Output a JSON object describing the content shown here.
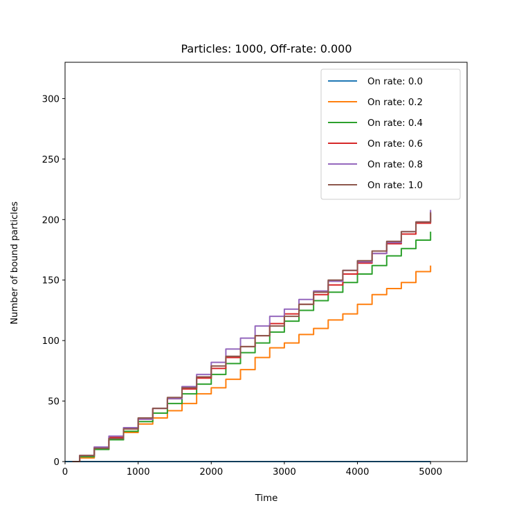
{
  "chart_data": {
    "type": "line",
    "title": "Particles: 1000, Off-rate: 0.000",
    "xlabel": "Time",
    "ylabel": "Number of bound particles",
    "xlim": [
      0,
      5500
    ],
    "ylim": [
      0,
      330
    ],
    "xticks": [
      0,
      1000,
      2000,
      3000,
      4000,
      5000
    ],
    "yticks": [
      0,
      50,
      100,
      150,
      200,
      250,
      300
    ],
    "grid": false,
    "legend_position": "top-right",
    "series": [
      {
        "name": "On rate: 0.0",
        "color": "#1f77b4",
        "x": [
          0,
          5000
        ],
        "y": [
          0,
          0
        ]
      },
      {
        "name": "On rate: 0.2",
        "color": "#ff7f0e",
        "x": [
          100,
          200,
          400,
          600,
          800,
          1000,
          1200,
          1400,
          1600,
          1800,
          2000,
          2200,
          2400,
          2600,
          2800,
          3000,
          3200,
          3400,
          3600,
          3800,
          4000,
          4200,
          4400,
          4600,
          4800,
          5000
        ],
        "y": [
          0,
          3,
          10,
          18,
          24,
          31,
          36,
          42,
          48,
          56,
          61,
          68,
          76,
          86,
          94,
          98,
          105,
          110,
          117,
          122,
          130,
          138,
          143,
          148,
          157,
          162
        ]
      },
      {
        "name": "On rate: 0.4",
        "color": "#2ca02c",
        "x": [
          100,
          200,
          400,
          600,
          800,
          1000,
          1200,
          1400,
          1600,
          1800,
          2000,
          2200,
          2400,
          2600,
          2800,
          3000,
          3200,
          3400,
          3600,
          3800,
          4000,
          4200,
          4400,
          4600,
          4800,
          5000
        ],
        "y": [
          0,
          4,
          10,
          18,
          25,
          33,
          40,
          48,
          56,
          64,
          72,
          81,
          90,
          98,
          107,
          116,
          125,
          133,
          140,
          148,
          155,
          162,
          170,
          176,
          183,
          190
        ]
      },
      {
        "name": "On rate: 0.6",
        "color": "#d62728",
        "x": [
          100,
          200,
          400,
          600,
          800,
          1000,
          1200,
          1400,
          1600,
          1800,
          2000,
          2200,
          2400,
          2600,
          2800,
          3000,
          3200,
          3400,
          3600,
          3800,
          4000,
          4200,
          4400,
          4600,
          4800,
          5000
        ],
        "y": [
          0,
          5,
          12,
          20,
          27,
          35,
          44,
          52,
          60,
          69,
          77,
          86,
          95,
          104,
          114,
          122,
          130,
          138,
          146,
          155,
          164,
          172,
          180,
          188,
          197,
          205
        ]
      },
      {
        "name": "On rate: 0.8",
        "color": "#9467bd",
        "x": [
          100,
          200,
          400,
          600,
          800,
          1000,
          1200,
          1400,
          1600,
          1800,
          2000,
          2200,
          2400,
          2600,
          2800,
          3000,
          3200,
          3400,
          3600,
          3800,
          4000,
          4200,
          4400,
          4600,
          4800,
          5000
        ],
        "y": [
          0,
          5,
          12,
          21,
          28,
          35,
          44,
          52,
          62,
          72,
          82,
          93,
          102,
          112,
          120,
          126,
          134,
          141,
          149,
          158,
          165,
          172,
          181,
          190,
          198,
          208
        ]
      },
      {
        "name": "On rate: 1.0",
        "color": "#8c564b",
        "x": [
          100,
          200,
          400,
          600,
          800,
          1000,
          1200,
          1400,
          1600,
          1800,
          2000,
          2200,
          2400,
          2600,
          2800,
          3000,
          3200,
          3400,
          3600,
          3800,
          4000,
          4200,
          4400,
          4600,
          4800,
          5000
        ],
        "y": [
          0,
          5,
          11,
          19,
          27,
          36,
          44,
          53,
          61,
          70,
          79,
          87,
          95,
          104,
          112,
          120,
          130,
          140,
          150,
          158,
          166,
          174,
          182,
          190,
          198,
          206
        ]
      }
    ]
  }
}
